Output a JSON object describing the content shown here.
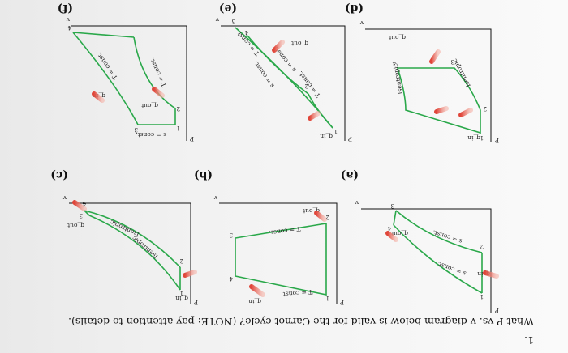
{
  "question": {
    "number": "1.",
    "text": "What P vs. v diagram below is valid for the Carnot cycle? (NOTE: pay attention to details)."
  },
  "axes": {
    "y": "P",
    "x": "v"
  },
  "panels": [
    {
      "label": "(a)",
      "texts": [
        "s = const.",
        "s = const.",
        "q_in",
        "q_out"
      ],
      "points": [
        "1",
        "2",
        "3",
        "4"
      ]
    },
    {
      "label": "(b)",
      "texts": [
        "T = const.",
        "T = const.",
        "q_in",
        "q_out"
      ],
      "points": [
        "1",
        "2",
        "3",
        "4"
      ]
    },
    {
      "label": "(c)",
      "texts": [
        "Isentropic",
        "Isentropic",
        "q_in",
        "q_out"
      ],
      "points": [
        "1",
        "2",
        "3",
        "4"
      ]
    },
    {
      "label": "(d)",
      "texts": [
        "Isentropic",
        "Isentropic",
        "q_in",
        "q_out"
      ],
      "points": [
        "1",
        "2",
        "3",
        "4"
      ]
    },
    {
      "label": "(e)",
      "texts": [
        "T = const.",
        "s = const.",
        "s = const.",
        "T = const.",
        "q_in",
        "q_out"
      ],
      "points": [
        "1",
        "2",
        "3",
        "4"
      ]
    },
    {
      "label": "(f)",
      "texts": [
        "T = const.",
        "T = const.",
        "s = const.",
        "q_in",
        "q_out"
      ],
      "points": [
        "1",
        "2",
        "3",
        "4"
      ]
    }
  ],
  "colors": {
    "curve": "#2aa84a",
    "arrow": "#e0463a"
  }
}
